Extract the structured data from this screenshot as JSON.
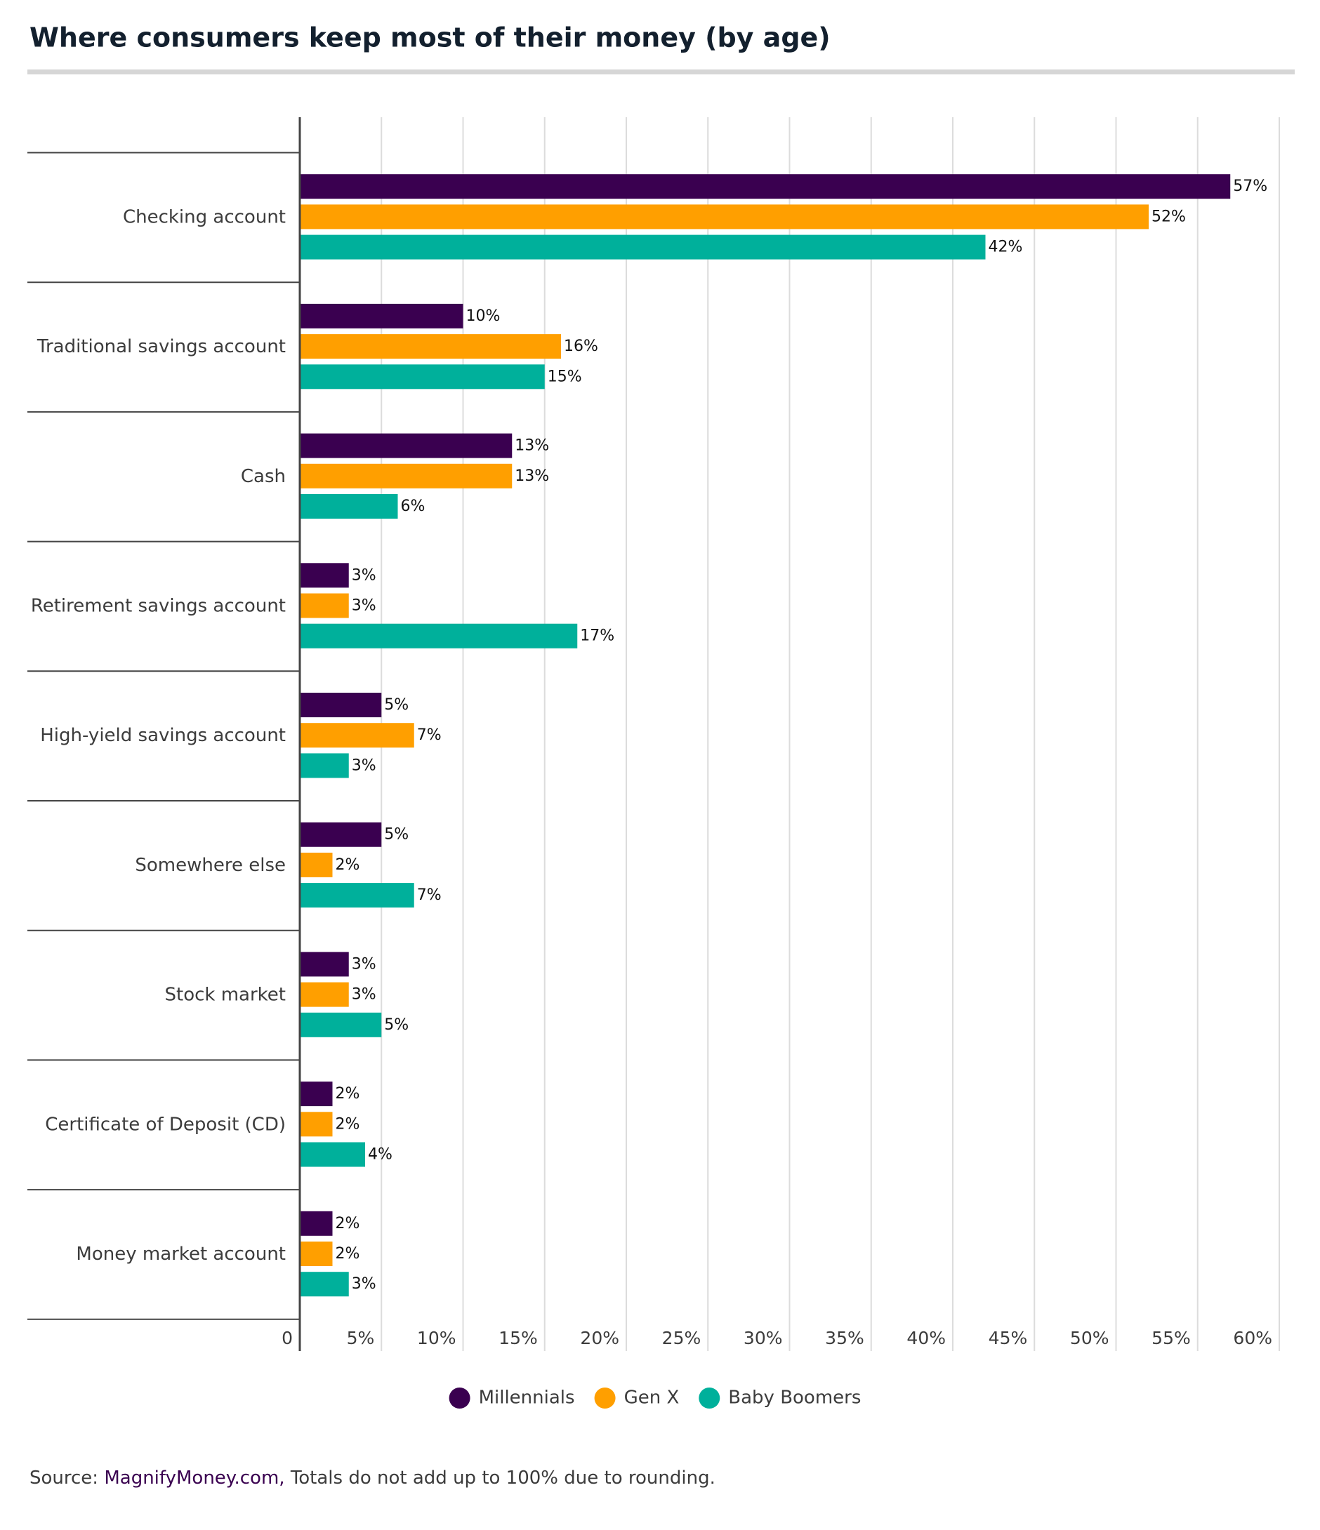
{
  "chart_data": {
    "type": "bar",
    "orientation": "horizontal",
    "title": "Where consumers keep most of their money (by age)",
    "categories": [
      "Checking account",
      "Traditional savings account",
      "Cash",
      "Retirement savings account",
      "High-yield savings account",
      "Somewhere else",
      "Stock market",
      "Certificate of Deposit (CD)",
      "Money market account"
    ],
    "series": [
      {
        "name": "Millennials",
        "color": "#3a0050",
        "values": [
          57,
          10,
          13,
          3,
          5,
          5,
          3,
          2,
          2
        ],
        "value_labels": [
          "57%",
          "10%",
          "13%",
          "3%",
          "5%",
          "5%",
          "3%",
          "2%",
          "2%"
        ]
      },
      {
        "name": "Gen X",
        "color": "#ff9f00",
        "values": [
          52,
          16,
          13,
          3,
          7,
          2,
          3,
          2,
          2
        ],
        "value_labels": [
          "52%",
          "16%",
          "13%",
          "3%",
          "7%",
          "2%",
          "3%",
          "2%",
          "2%"
        ]
      },
      {
        "name": "Baby Boomers",
        "color": "#00b09b",
        "values": [
          42,
          15,
          6,
          17,
          3,
          7,
          5,
          4,
          3
        ],
        "value_labels": [
          "42%",
          "15%",
          "6%",
          "17%",
          "3%",
          "7%",
          "5%",
          "4%",
          "3%"
        ]
      }
    ],
    "xlim": [
      0,
      60
    ],
    "xticks": [
      0,
      {
        "value": 5,
        "label": "5%"
      },
      {
        "value": 10,
        "label": "10%"
      },
      {
        "value": 15,
        "label": "15%"
      },
      {
        "value": 20,
        "label": "20%"
      },
      {
        "value": 25,
        "label": "25%"
      },
      {
        "value": 30,
        "label": "30%"
      },
      {
        "value": 35,
        "label": "35%"
      },
      {
        "value": 40,
        "label": "40%"
      },
      {
        "value": 45,
        "label": "45%"
      },
      {
        "value": 50,
        "label": "50%"
      },
      {
        "value": 55,
        "label": "55%"
      },
      {
        "value": 60,
        "label": "60%"
      }
    ],
    "grid": true,
    "legend": "bottom",
    "source_label": "Source:",
    "source_link": "MagnifyMoney.com,",
    "source_note": "Totals do not add up to 100% due to rounding."
  }
}
